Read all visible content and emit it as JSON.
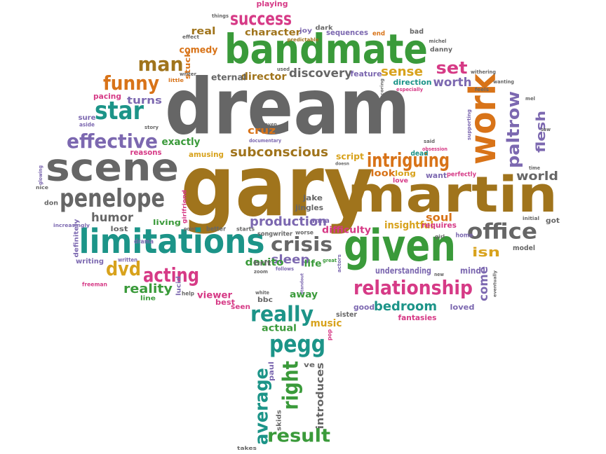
{
  "palette": {
    "gray": "#666666",
    "brown": "#a0741c",
    "green": "#3a9a3a",
    "teal": "#1c9488",
    "purple": "#7c68b0",
    "pink": "#d63a86",
    "orange": "#d87318",
    "gold": "#d8a21c"
  },
  "words": [
    {
      "text": "dream",
      "color": "gray"
    },
    {
      "text": "gary",
      "color": "brown"
    },
    {
      "text": "martin",
      "color": "brown"
    },
    {
      "text": "bandmate",
      "color": "green"
    },
    {
      "text": "given",
      "color": "green"
    },
    {
      "text": "scene",
      "color": "gray"
    },
    {
      "text": "limitations",
      "color": "teal"
    },
    {
      "text": "penelope",
      "color": "gray"
    },
    {
      "text": "work",
      "color": "orange"
    },
    {
      "text": "star",
      "color": "teal"
    },
    {
      "text": "effective",
      "color": "purple"
    },
    {
      "text": "office",
      "color": "gray"
    },
    {
      "text": "intriguing",
      "color": "orange"
    },
    {
      "text": "relationship",
      "color": "pink"
    },
    {
      "text": "success",
      "color": "pink"
    },
    {
      "text": "funny",
      "color": "orange"
    },
    {
      "text": "man",
      "color": "brown"
    },
    {
      "text": "pegg",
      "color": "teal"
    },
    {
      "text": "right",
      "color": "green"
    },
    {
      "text": "really",
      "color": "teal"
    },
    {
      "text": "crisis",
      "color": "gray"
    },
    {
      "text": "acting",
      "color": "pink"
    },
    {
      "text": "dvd",
      "color": "gold"
    },
    {
      "text": "average",
      "color": "teal"
    },
    {
      "text": "result",
      "color": "green"
    },
    {
      "text": "paltrow",
      "color": "purple"
    },
    {
      "text": "set",
      "color": "pink"
    },
    {
      "text": "subconscious",
      "color": "brown"
    },
    {
      "text": "production",
      "color": "purple"
    },
    {
      "text": "bedroom",
      "color": "teal"
    },
    {
      "text": "reality",
      "color": "green"
    },
    {
      "text": "sense",
      "color": "gold"
    },
    {
      "text": "discovery",
      "color": "gray"
    },
    {
      "text": "worth",
      "color": "purple"
    },
    {
      "text": "flesh",
      "color": "purple"
    },
    {
      "text": "world",
      "color": "gray"
    },
    {
      "text": "isn",
      "color": "gold"
    },
    {
      "text": "come",
      "color": "purple"
    },
    {
      "text": "sleep",
      "color": "purple"
    },
    {
      "text": "humor",
      "color": "gray"
    },
    {
      "text": "character",
      "color": "brown"
    },
    {
      "text": "comedy",
      "color": "orange"
    },
    {
      "text": "director",
      "color": "brown"
    },
    {
      "text": "real",
      "color": "brown"
    },
    {
      "text": "turns",
      "color": "purple"
    },
    {
      "text": "exactly",
      "color": "green"
    },
    {
      "text": "cruz",
      "color": "orange"
    },
    {
      "text": "devito",
      "color": "green"
    },
    {
      "text": "viewer",
      "color": "pink"
    },
    {
      "text": "insightful",
      "color": "gold"
    },
    {
      "text": "soul",
      "color": "orange"
    },
    {
      "text": "difficulty",
      "color": "pink"
    },
    {
      "text": "understanding",
      "color": "purple"
    },
    {
      "text": "music",
      "color": "gold"
    },
    {
      "text": "actual",
      "color": "green"
    },
    {
      "text": "introduces",
      "color": "gray"
    },
    {
      "text": "life",
      "color": "green"
    },
    {
      "text": "away",
      "color": "green"
    },
    {
      "text": "look",
      "color": "orange"
    },
    {
      "text": "script",
      "color": "gold"
    },
    {
      "text": "long",
      "color": "gold"
    },
    {
      "text": "want",
      "color": "purple"
    },
    {
      "text": "mind",
      "color": "purple"
    },
    {
      "text": "good",
      "color": "purple"
    },
    {
      "text": "loved",
      "color": "purple"
    },
    {
      "text": "living",
      "color": "green"
    },
    {
      "text": "sequences",
      "color": "purple"
    },
    {
      "text": "feature",
      "color": "purple"
    },
    {
      "text": "direction",
      "color": "teal"
    },
    {
      "text": "eternal",
      "color": "gray"
    },
    {
      "text": "stuck",
      "color": "orange"
    },
    {
      "text": "playing",
      "color": "pink"
    },
    {
      "text": "requires",
      "color": "pink"
    },
    {
      "text": "fantasies",
      "color": "pink"
    },
    {
      "text": "amusing",
      "color": "gold"
    },
    {
      "text": "reasons",
      "color": "pink"
    },
    {
      "text": "pacing",
      "color": "pink"
    },
    {
      "text": "sure",
      "color": "purple"
    },
    {
      "text": "aside",
      "color": "purple"
    },
    {
      "text": "jingles",
      "color": "gray"
    },
    {
      "text": "jake",
      "color": "gray"
    },
    {
      "text": "anna",
      "color": "purple"
    },
    {
      "text": "brit",
      "color": "gray"
    },
    {
      "text": "best",
      "color": "pink"
    },
    {
      "text": "seen",
      "color": "pink"
    },
    {
      "text": "bbc",
      "color": "gray"
    },
    {
      "text": "sister",
      "color": "gray"
    },
    {
      "text": "model",
      "color": "gray"
    },
    {
      "text": "got",
      "color": "gray"
    },
    {
      "text": "writing",
      "color": "purple"
    },
    {
      "text": "lost",
      "color": "gray"
    },
    {
      "text": "definitely",
      "color": "purple"
    },
    {
      "text": "don",
      "color": "gray"
    },
    {
      "text": "line",
      "color": "green"
    },
    {
      "text": "lucid",
      "color": "purple"
    },
    {
      "text": "ve",
      "color": "gray"
    },
    {
      "text": "paul",
      "color": "purple"
    },
    {
      "text": "skids",
      "color": "gray"
    },
    {
      "text": "takes",
      "color": "gray"
    },
    {
      "text": "dark",
      "color": "gray"
    },
    {
      "text": "bad",
      "color": "gray"
    },
    {
      "text": "danny",
      "color": "gray"
    },
    {
      "text": "joy",
      "color": "purple"
    },
    {
      "text": "end",
      "color": "orange"
    },
    {
      "text": "dead",
      "color": "teal"
    },
    {
      "text": "perfectly",
      "color": "pink"
    },
    {
      "text": "love",
      "color": "pink"
    },
    {
      "text": "songwriter",
      "color": "gray"
    },
    {
      "text": "better",
      "color": "gray"
    },
    {
      "text": "starts",
      "color": "gray"
    },
    {
      "text": "worse",
      "color": "gray"
    },
    {
      "text": "home",
      "color": "purple"
    },
    {
      "text": "drama",
      "color": "purple"
    },
    {
      "text": "written",
      "color": "purple"
    },
    {
      "text": "freeman",
      "color": "pink"
    },
    {
      "text": "help",
      "color": "gray"
    },
    {
      "text": "white",
      "color": "gray"
    },
    {
      "text": "zoom",
      "color": "gray"
    },
    {
      "text": "follows",
      "color": "purple"
    },
    {
      "text": "pop",
      "color": "pink"
    },
    {
      "text": "great",
      "color": "green"
    },
    {
      "text": "actors",
      "color": "purple"
    },
    {
      "text": "girlfriend",
      "color": "pink"
    },
    {
      "text": "increasingly",
      "color": "purple"
    },
    {
      "text": "nice",
      "color": "gray"
    },
    {
      "text": "things",
      "color": "gray"
    },
    {
      "text": "effect",
      "color": "gray"
    },
    {
      "text": "predictable",
      "color": "brown"
    },
    {
      "text": "michel",
      "color": "gray"
    },
    {
      "text": "withering",
      "color": "gray"
    },
    {
      "text": "wanting",
      "color": "gray"
    },
    {
      "text": "feels",
      "color": "gray"
    },
    {
      "text": "especially",
      "color": "pink"
    },
    {
      "text": "supporting",
      "color": "purple"
    },
    {
      "text": "obsession",
      "color": "pink"
    },
    {
      "text": "said",
      "color": "gray"
    },
    {
      "text": "documentary",
      "color": "purple"
    },
    {
      "text": "doesn",
      "color": "gray"
    },
    {
      "text": "story",
      "color": "gray"
    },
    {
      "text": "little",
      "color": "orange"
    },
    {
      "text": "writer",
      "color": "gray"
    },
    {
      "text": "used",
      "color": "gray"
    },
    {
      "text": "haven",
      "color": "gray"
    },
    {
      "text": "saw",
      "color": "gray"
    },
    {
      "text": "time",
      "color": "gray"
    },
    {
      "text": "initial",
      "color": "gray"
    },
    {
      "text": "new",
      "color": "gray"
    },
    {
      "text": "girl",
      "color": "gray"
    },
    {
      "text": "point",
      "color": "gray"
    },
    {
      "text": "eventually",
      "color": "gray"
    },
    {
      "text": "mel",
      "color": "gray"
    },
    {
      "text": "glowing",
      "color": "purple"
    },
    {
      "text": "scoring",
      "color": "gray"
    },
    {
      "text": "standout",
      "color": "purple"
    }
  ]
}
